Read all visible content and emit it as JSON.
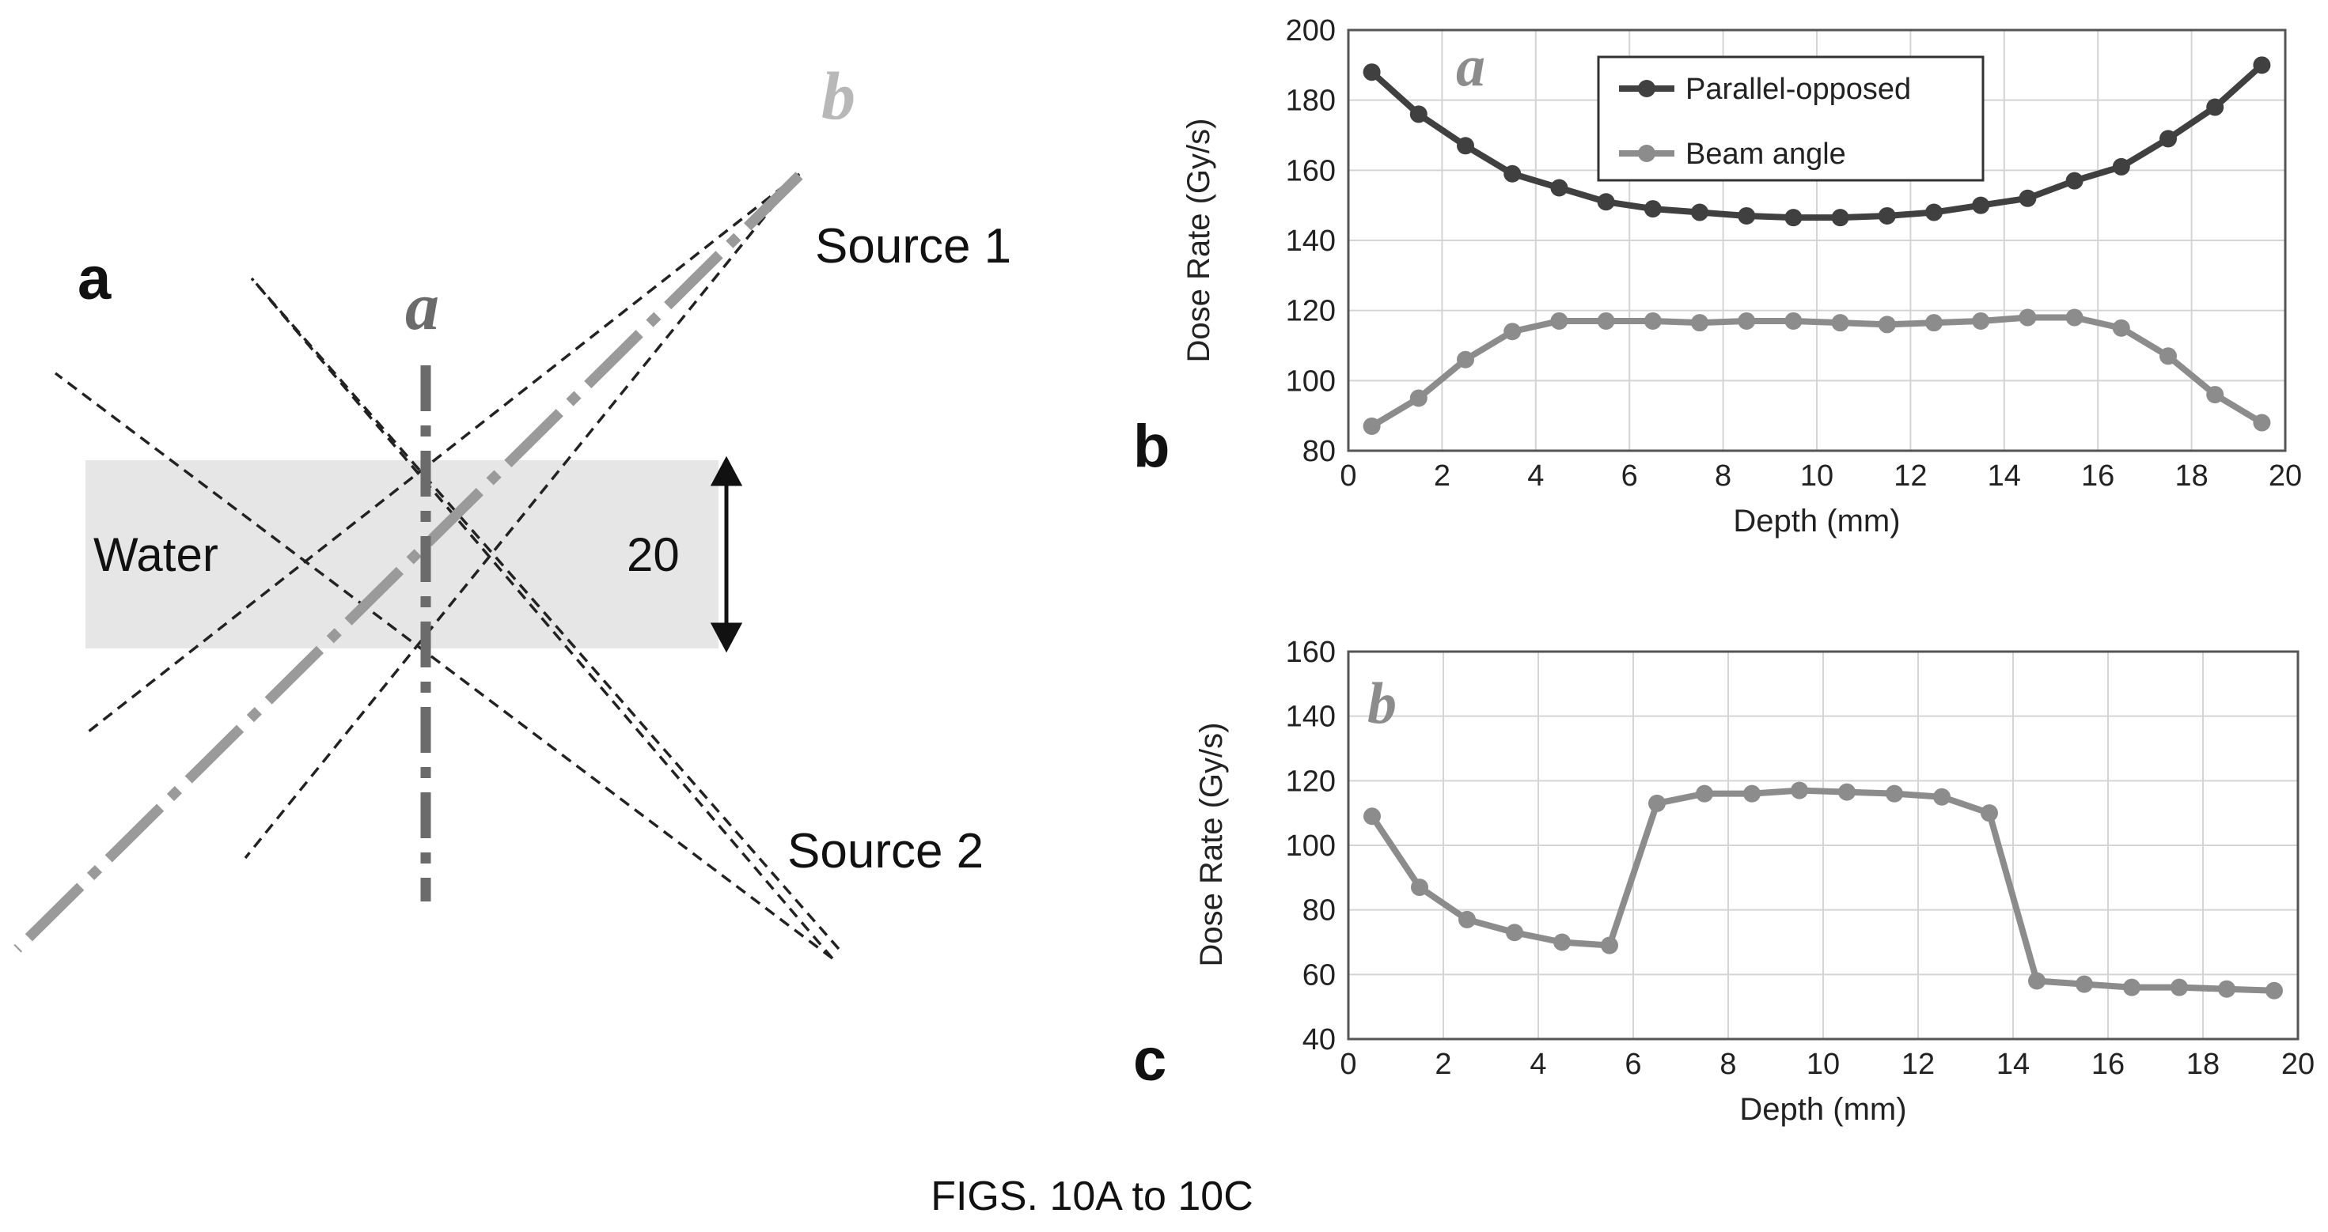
{
  "figure_caption": "FIGS. 10A to 10C",
  "panel_a": {
    "panel_label": "a",
    "water_label": "Water",
    "thickness_label": "20",
    "source1_label": "Source 1",
    "source2_label": "Source 2",
    "line_a_label": "a",
    "line_b_label": "b",
    "colors": {
      "water": "#e6e6e6",
      "line_a": "#6b6b6b",
      "line_b": "#9a9a9a",
      "label_b": "#b8b8b8",
      "beam": "#222222"
    }
  },
  "chart_data": [
    {
      "type": "line",
      "panel_label": "b",
      "inset_label": "a",
      "xlabel": "Depth (mm)",
      "ylabel": "Dose Rate (Gy/s)",
      "xlim": [
        0,
        20
      ],
      "ylim": [
        80,
        200
      ],
      "xticks": [
        "0",
        "2",
        "4",
        "6",
        "8",
        "10",
        "12",
        "14",
        "16",
        "18",
        "20"
      ],
      "yticks": [
        "80",
        "100",
        "120",
        "140",
        "160",
        "180",
        "200"
      ],
      "grid": true,
      "legend_position": "top-center",
      "x": [
        0.5,
        1.5,
        2.5,
        3.5,
        4.5,
        5.5,
        6.5,
        7.5,
        8.5,
        9.5,
        10.5,
        11.5,
        12.5,
        13.5,
        14.5,
        15.5,
        16.5,
        17.5,
        18.5,
        19.5
      ],
      "series": [
        {
          "name": "Parallel-opposed",
          "color": "#404040",
          "values": [
            188,
            176,
            167,
            159,
            155,
            151,
            149,
            148,
            147,
            146.5,
            146.5,
            147,
            148,
            150,
            152,
            157,
            161,
            169,
            178,
            190
          ]
        },
        {
          "name": "Beam angle",
          "color": "#8c8c8c",
          "values": [
            87,
            95,
            106,
            114,
            117,
            117,
            117,
            116.5,
            117,
            117,
            116.5,
            116,
            116.5,
            117,
            118,
            118,
            115,
            107,
            96,
            88
          ]
        }
      ]
    },
    {
      "type": "line",
      "panel_label": "c",
      "inset_label": "b",
      "xlabel": "Depth (mm)",
      "ylabel": "Dose Rate (Gy/s)",
      "xlim": [
        0,
        20
      ],
      "ylim": [
        40,
        160
      ],
      "xticks": [
        "0",
        "2",
        "4",
        "6",
        "8",
        "10",
        "12",
        "14",
        "16",
        "18",
        "20"
      ],
      "yticks": [
        "40",
        "60",
        "80",
        "100",
        "120",
        "140",
        "160"
      ],
      "grid": true,
      "x": [
        0.5,
        1.5,
        2.5,
        3.5,
        4.5,
        5.5,
        6.5,
        7.5,
        8.5,
        9.5,
        10.5,
        11.5,
        12.5,
        13.5,
        14.5,
        15.5,
        16.5,
        17.5,
        18.5,
        19.5
      ],
      "series": [
        {
          "color": "#8c8c8c",
          "values": [
            109,
            87,
            77,
            73,
            70,
            69,
            113,
            116,
            116,
            117,
            116.5,
            116,
            115,
            110,
            58,
            57,
            56,
            56,
            55.5,
            55
          ]
        }
      ]
    }
  ]
}
